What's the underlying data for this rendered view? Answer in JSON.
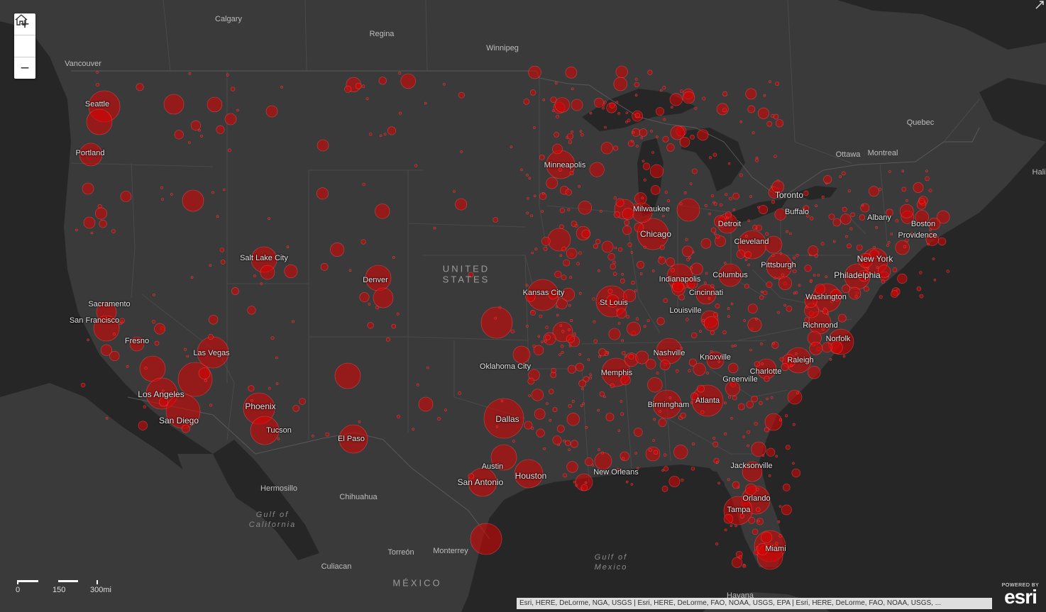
{
  "zoom_controls": {
    "zoom_in": "+",
    "home_icon": "home-icon",
    "zoom_out": "−"
  },
  "scale": {
    "labels": [
      "0",
      "150",
      "300mi"
    ]
  },
  "attribution": "Esri, HERE, DeLorme, NGA, USGS | Esri, HERE, DeLorme, FAO, NOAA, USGS, EPA | Esri, HERE, DeLorme, FAO, NOAA, USGS, ...",
  "esri": {
    "powered_by": "POWERED BY",
    "logo": "esri"
  },
  "colors": {
    "land": "#3a3a3a",
    "water": "#262626",
    "border": "#545454",
    "point": "#e00000"
  },
  "labels": {
    "cities": [
      "Seattle",
      "Portland",
      "Sacramento",
      "San Francisco",
      "Fresno",
      "Los Angeles",
      "San Diego",
      "Las Vegas",
      "Phoenix",
      "Tucson",
      "Salt Lake City",
      "Denver",
      "El Paso",
      "Minneapolis",
      "Kansas City",
      "Oklahoma City",
      "Dallas",
      "Austin",
      "San Antonio",
      "Houston",
      "New Orleans",
      "Memphis",
      "St Louis",
      "Chicago",
      "Milwaukee",
      "Detroit",
      "Cleveland",
      "Columbus",
      "Indianapolis",
      "Cincinnati",
      "Louisville",
      "Nashville",
      "Knoxville",
      "Birmingham",
      "Atlanta",
      "Charlotte",
      "Greenville",
      "Raleigh",
      "Richmond",
      "Norfolk",
      "Washington",
      "Philadelphia",
      "New York",
      "Pittsburgh",
      "Buffalo",
      "Albany",
      "Boston",
      "Providence",
      "Jacksonville",
      "Orlando",
      "Tampa",
      "Miami",
      "Toronto",
      "Ottawa",
      "Montreal",
      "Quebec",
      "Hali",
      "Vancouver",
      "Calgary",
      "Regina",
      "Winnipeg",
      "Hermosillo",
      "Chihuahua",
      "Monterrey",
      "Torreón",
      "Culiacan",
      "Havana"
    ],
    "countries": [
      "UNITED",
      "STATES",
      "MÉXICO"
    ],
    "water": [
      "Gulf of",
      "California",
      "Gulf of",
      "Mexico"
    ]
  }
}
